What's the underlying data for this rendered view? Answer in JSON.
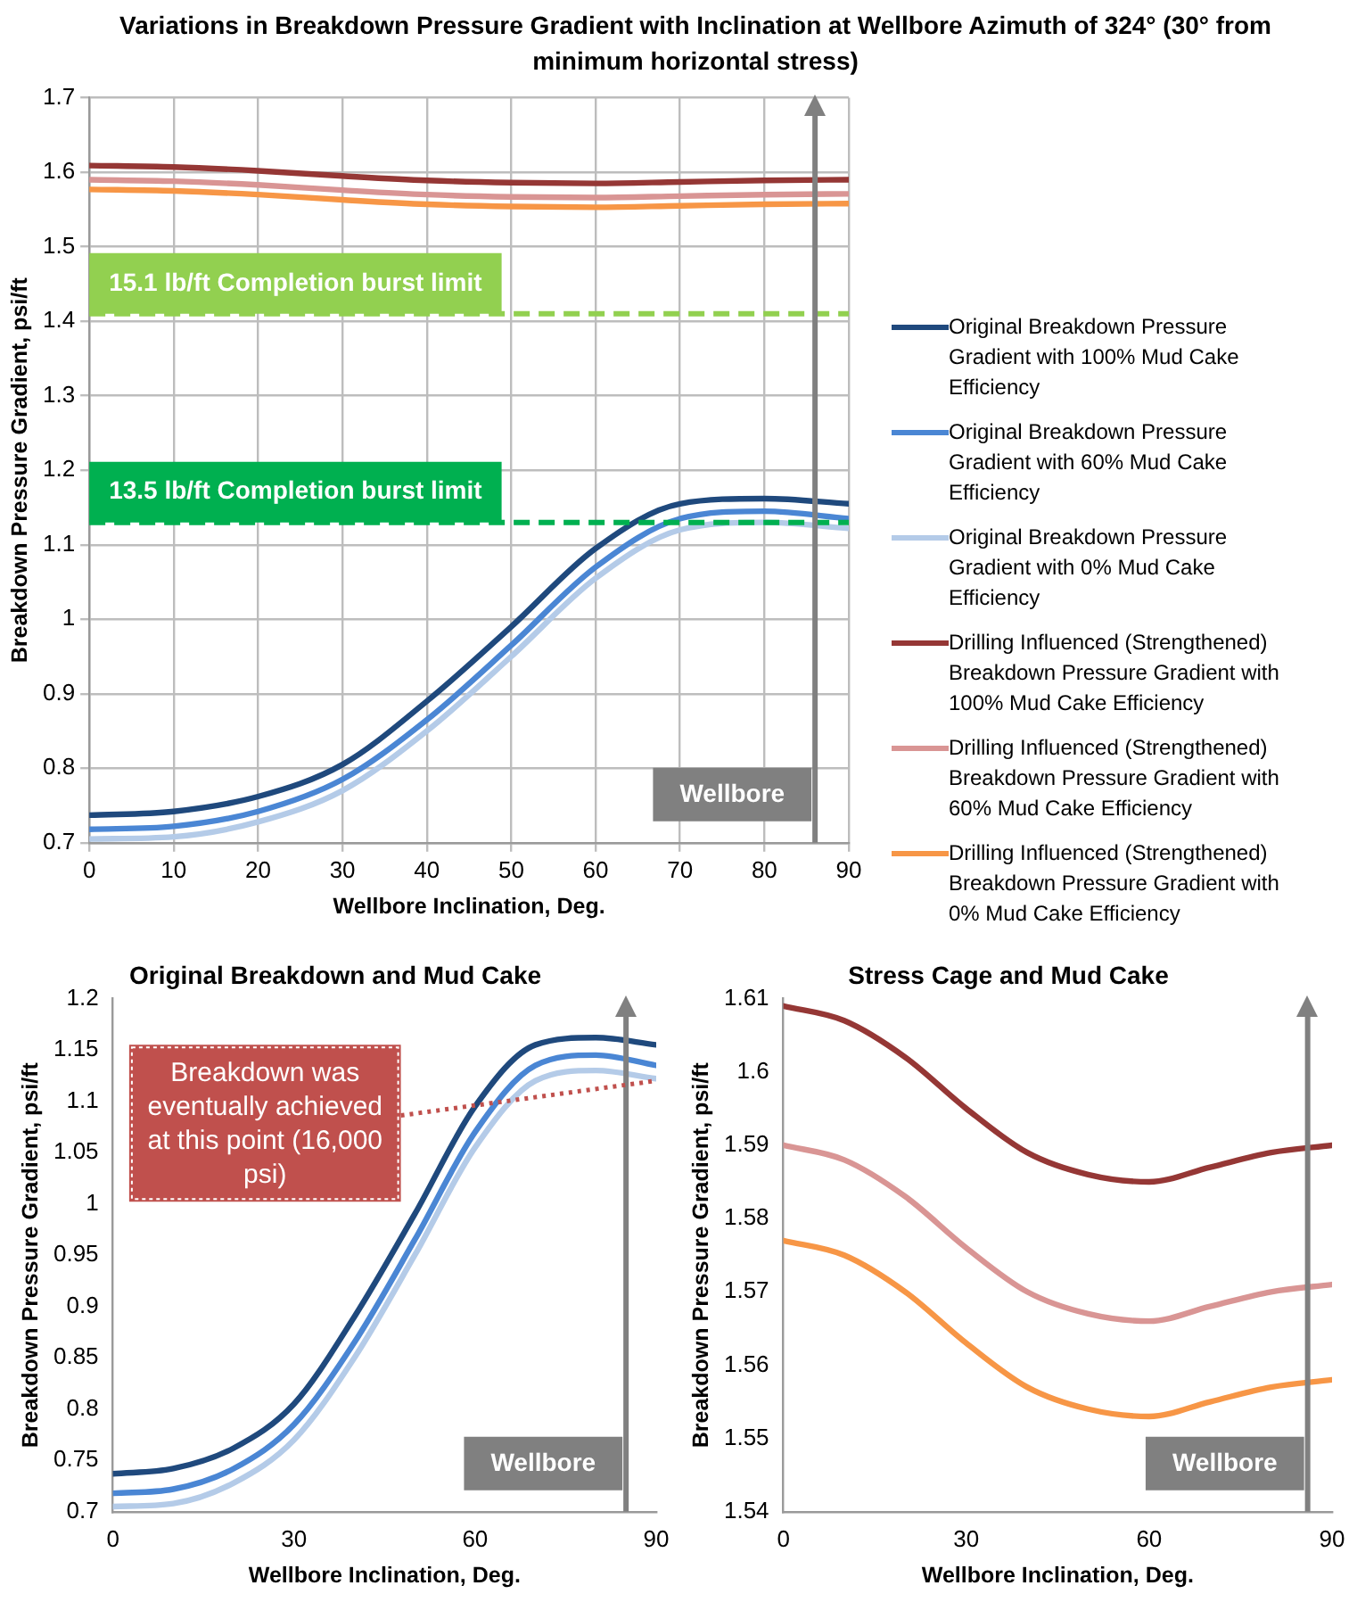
{
  "chart_data": [
    {
      "type": "line",
      "title": "Variations in Breakdown Pressure Gradient with Inclination at Wellbore Azimuth of 324° (30° from minimum horizontal stress)",
      "xlabel": "Wellbore Inclination, Deg.",
      "ylabel": "Breakdown Pressure Gradient, psi/ft",
      "x": [
        0,
        10,
        20,
        30,
        40,
        50,
        60,
        70,
        80,
        90
      ],
      "series": [
        {
          "name": "Original Breakdown Pressure Gradient with 100% Mud Cake Efficiency",
          "color": "#1f497d",
          "values": [
            0.737,
            0.742,
            0.762,
            0.805,
            0.89,
            0.99,
            1.095,
            1.155,
            1.162,
            1.155
          ]
        },
        {
          "name": "Original Breakdown Pressure Gradient with 60% Mud Cake Efficiency",
          "color": "#4a86d4",
          "values": [
            0.718,
            0.722,
            0.742,
            0.785,
            0.865,
            0.965,
            1.07,
            1.135,
            1.145,
            1.135
          ]
        },
        {
          "name": "Original Breakdown Pressure Gradient with 0% Mud Cake Efficiency",
          "color": "#b4cbe8",
          "values": [
            0.705,
            0.708,
            0.728,
            0.77,
            0.85,
            0.95,
            1.055,
            1.12,
            1.13,
            1.122
          ]
        },
        {
          "name": "Drilling Influenced (Strengthened) Breakdown Pressure Gradient with 100% Mud Cake Efficiency",
          "color": "#953735",
          "values": [
            1.609,
            1.607,
            1.602,
            1.595,
            1.589,
            1.586,
            1.585,
            1.587,
            1.589,
            1.59
          ]
        },
        {
          "name": "Drilling Influenced (Strengthened) Breakdown Pressure Gradient with 60% Mud Cake Efficiency",
          "color": "#d99594",
          "values": [
            1.59,
            1.588,
            1.583,
            1.576,
            1.57,
            1.567,
            1.566,
            1.568,
            1.57,
            1.571
          ]
        },
        {
          "name": "Drilling Influenced (Strengthened) Breakdown Pressure Gradient with 0% Mud Cake Efficiency",
          "color": "#f79646",
          "values": [
            1.577,
            1.575,
            1.57,
            1.563,
            1.557,
            1.554,
            1.553,
            1.555,
            1.557,
            1.558
          ]
        }
      ],
      "xlim": [
        0,
        90
      ],
      "xticks": [
        0,
        10,
        20,
        30,
        40,
        50,
        60,
        70,
        80,
        90
      ],
      "ylim": [
        0.7,
        1.7
      ],
      "yticks": [
        0.7,
        0.8,
        0.9,
        1,
        1.1,
        1.2,
        1.3,
        1.4,
        1.5,
        1.6,
        1.7
      ],
      "ref_lines": [
        {
          "axis": "y",
          "value": 1.41,
          "label": "15.1 lb/ft Completion burst limit",
          "color": "#92d050",
          "line_style": "dashed"
        },
        {
          "axis": "y",
          "value": 1.13,
          "label": "13.5 lb/ft Completion burst limit",
          "color": "#00b050",
          "line_style": "dashed"
        },
        {
          "axis": "x",
          "value": 86,
          "label": "Wellbore",
          "color": "#808080"
        }
      ],
      "grid": true,
      "legend": "right",
      "marker": "none",
      "line_style": "solid"
    },
    {
      "type": "line",
      "title": "Original Breakdown and Mud Cake",
      "xlabel": "Wellbore Inclination, Deg.",
      "ylabel": "Breakdown Pressure Gradient, psi/ft",
      "x": [
        0,
        10,
        20,
        30,
        40,
        50,
        60,
        70,
        80,
        90
      ],
      "series": [
        {
          "color": "#1f497d",
          "values": [
            0.737,
            0.742,
            0.762,
            0.805,
            0.89,
            0.99,
            1.095,
            1.155,
            1.162,
            1.155
          ]
        },
        {
          "color": "#4a86d4",
          "values": [
            0.718,
            0.722,
            0.742,
            0.785,
            0.865,
            0.965,
            1.07,
            1.135,
            1.145,
            1.135
          ]
        },
        {
          "color": "#b4cbe8",
          "values": [
            0.705,
            0.708,
            0.728,
            0.77,
            0.85,
            0.95,
            1.055,
            1.12,
            1.13,
            1.122
          ]
        }
      ],
      "xlim": [
        0,
        90
      ],
      "xticks": [
        0,
        30,
        60,
        90
      ],
      "ylim": [
        0.7,
        1.2
      ],
      "yticks": [
        0.7,
        0.75,
        0.8,
        0.85,
        0.9,
        0.95,
        1,
        1.05,
        1.1,
        1.15,
        1.2
      ],
      "ref_lines": [
        {
          "axis": "x",
          "value": 85,
          "label": "Wellbore",
          "color": "#808080"
        }
      ],
      "annotations": [
        {
          "text": "Breakdown was eventually achieved at this point (16,000 psi)",
          "x": 90,
          "y": 1.12
        }
      ],
      "grid": false,
      "legend": false,
      "marker": "none",
      "line_style": "solid"
    },
    {
      "type": "line",
      "title": "Stress Cage and Mud Cake",
      "xlabel": "Wellbore Inclination, Deg.",
      "ylabel": "Breakdown Pressure Gradient, psi/ft",
      "x": [
        0,
        10,
        20,
        30,
        40,
        50,
        60,
        70,
        80,
        90
      ],
      "series": [
        {
          "color": "#953735",
          "values": [
            1.609,
            1.607,
            1.602,
            1.595,
            1.589,
            1.586,
            1.585,
            1.587,
            1.589,
            1.59
          ]
        },
        {
          "color": "#d99594",
          "values": [
            1.59,
            1.588,
            1.583,
            1.576,
            1.57,
            1.567,
            1.566,
            1.568,
            1.57,
            1.571
          ]
        },
        {
          "color": "#f79646",
          "values": [
            1.577,
            1.575,
            1.57,
            1.563,
            1.557,
            1.554,
            1.553,
            1.555,
            1.557,
            1.558
          ]
        }
      ],
      "xlim": [
        0,
        90
      ],
      "xticks": [
        0,
        30,
        60,
        90
      ],
      "ylim": [
        1.54,
        1.61
      ],
      "yticks": [
        1.54,
        1.55,
        1.56,
        1.57,
        1.58,
        1.59,
        1.6,
        1.61
      ],
      "ref_lines": [
        {
          "axis": "x",
          "value": 86,
          "label": "Wellbore",
          "color": "#808080"
        }
      ],
      "grid": false,
      "legend": false,
      "marker": "none",
      "line_style": "solid"
    }
  ]
}
